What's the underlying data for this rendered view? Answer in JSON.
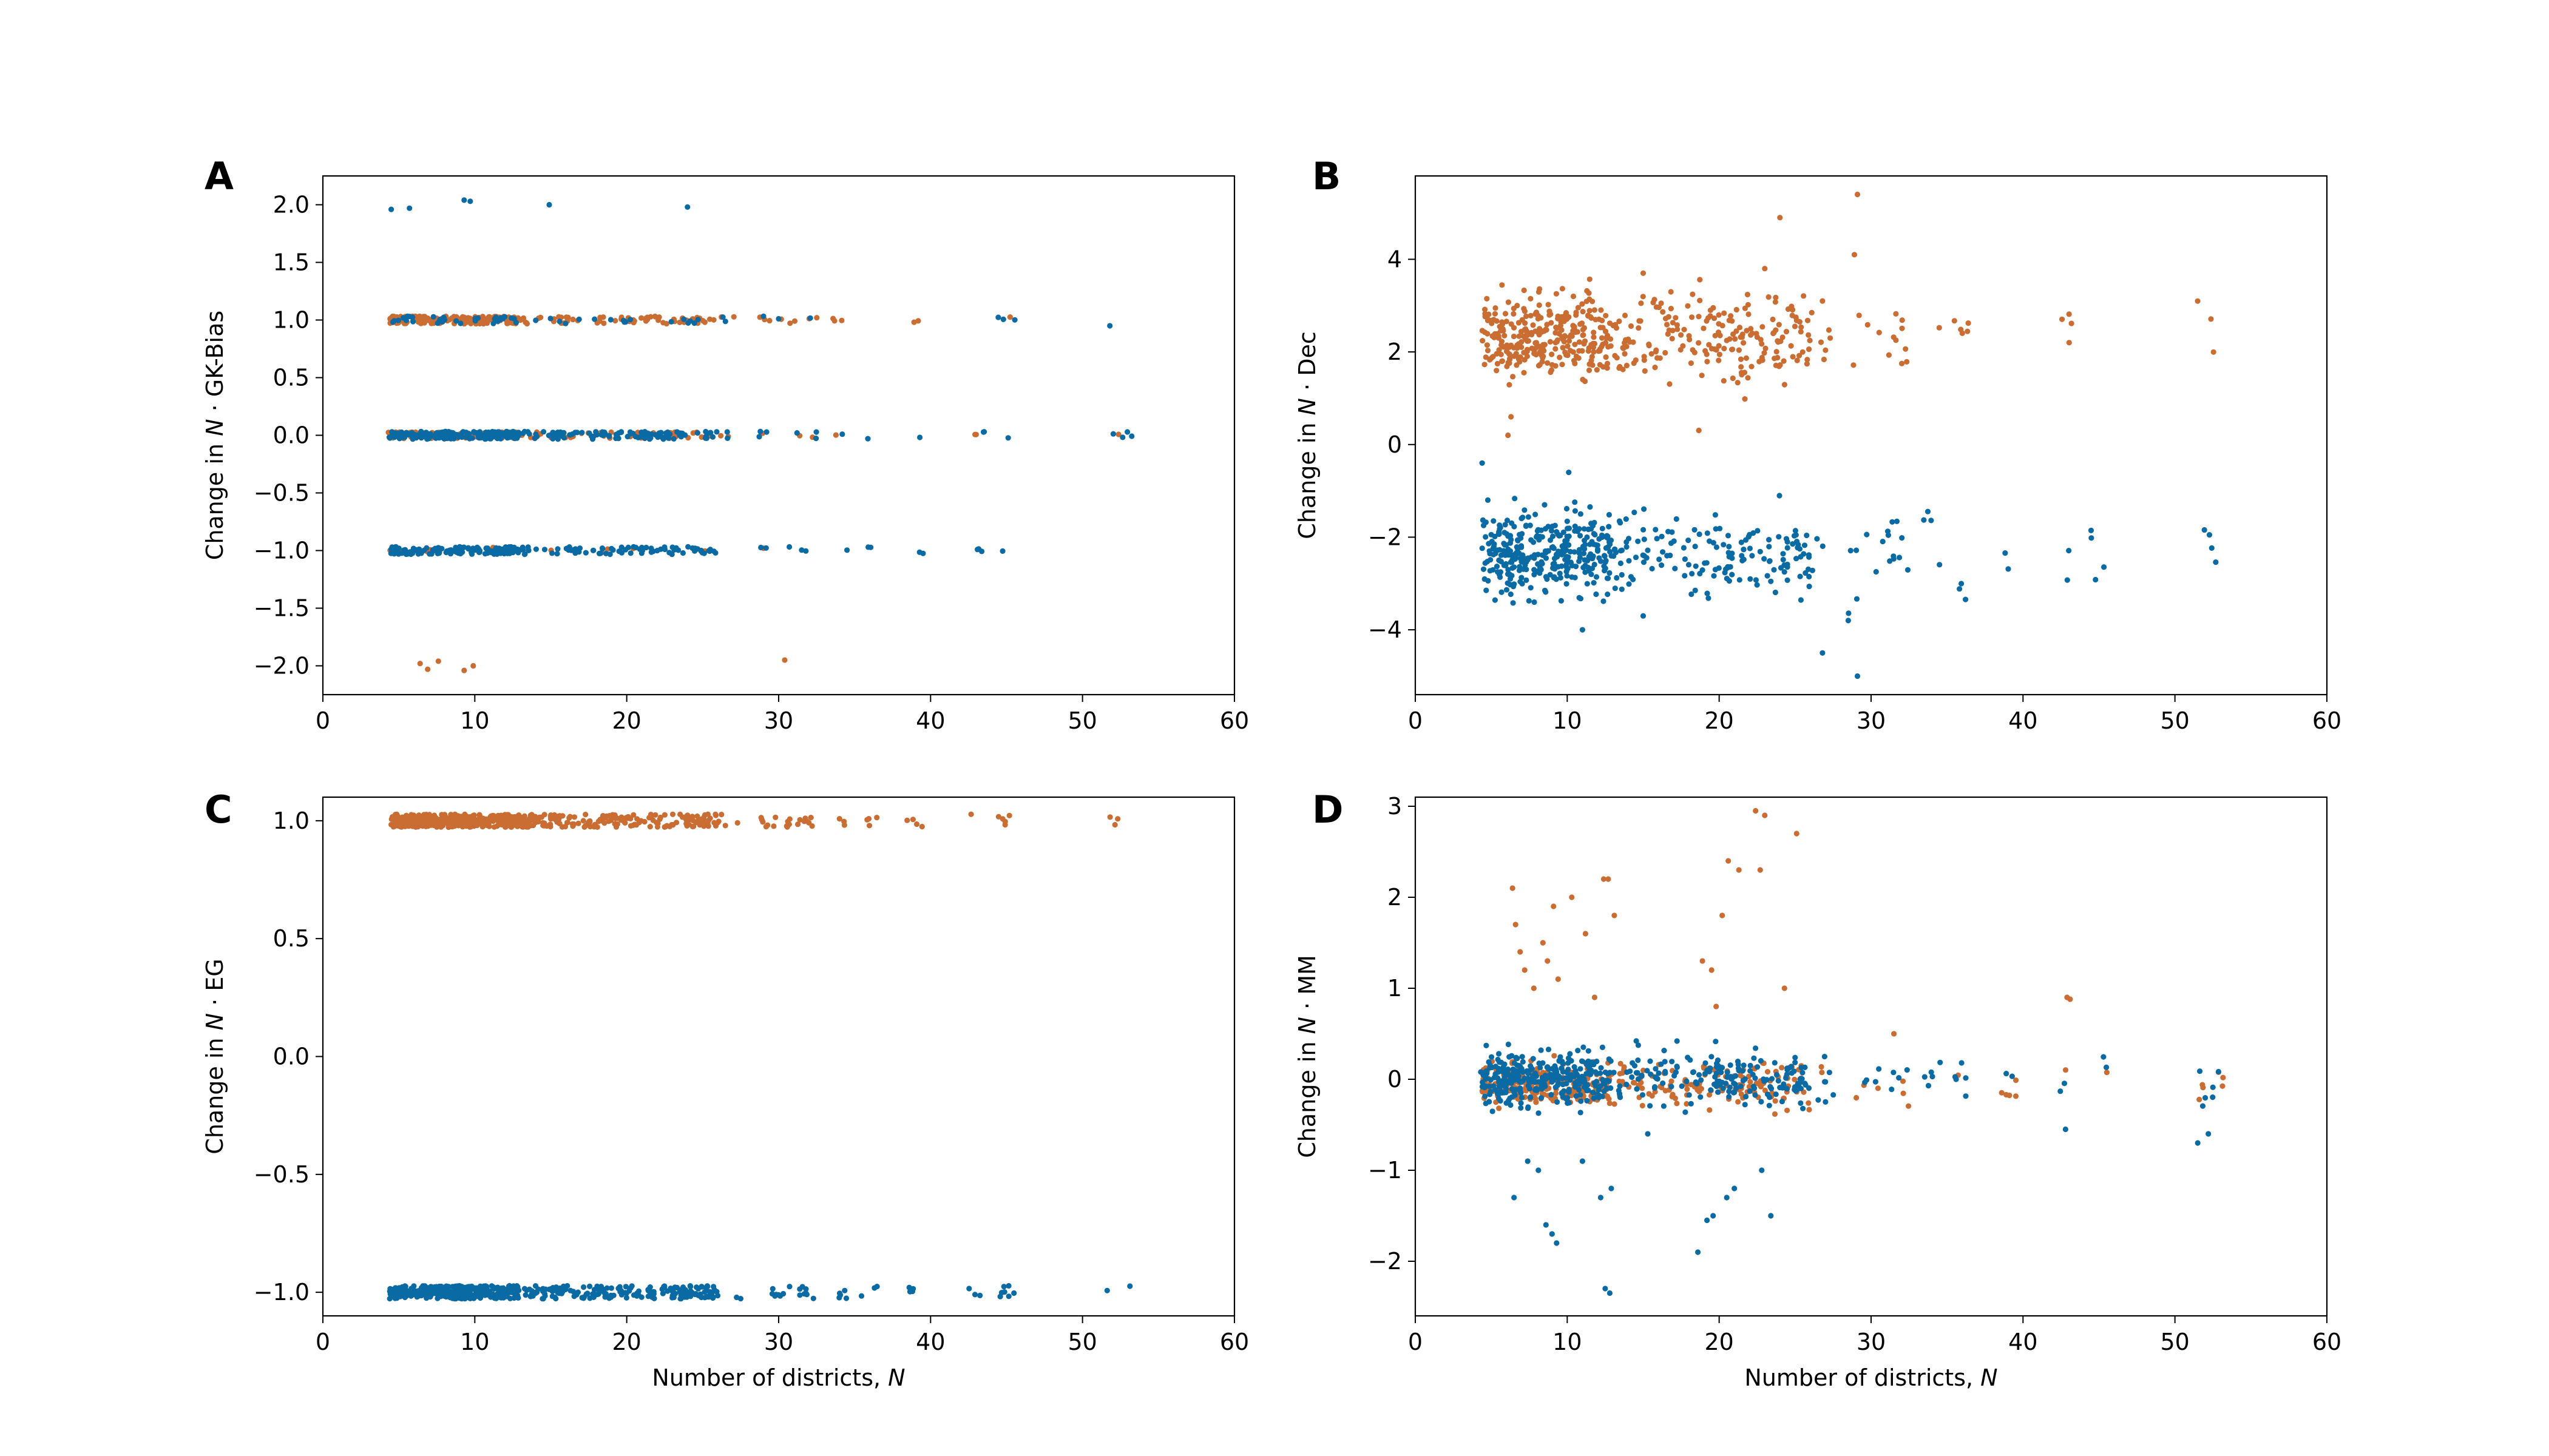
{
  "figure": {
    "colors": {
      "series_a": "#0a6aa3",
      "series_b": "#c96d33"
    }
  },
  "chart_data": [
    {
      "panel": "A",
      "type": "scatter",
      "xlabel_prefix": "",
      "xlabel_var": "",
      "ylabel_prefix": "Change in ",
      "ylabel_var": "N",
      "ylabel_suffix": " · GK-Bias",
      "xlim": [
        0,
        60
      ],
      "ylim": [
        -2.25,
        2.25
      ],
      "xticks": [
        "0",
        "10",
        "20",
        "30",
        "40",
        "50",
        "60"
      ],
      "xtick_values": [
        0,
        10,
        20,
        30,
        40,
        50,
        60
      ],
      "yticks": [
        "−2.0",
        "−1.5",
        "−1.0",
        "−0.5",
        "0.0",
        "0.5",
        "1.0",
        "1.5",
        "2.0"
      ],
      "ytick_values": [
        -2,
        -1.5,
        -1,
        -0.5,
        0,
        0.5,
        1,
        1.5,
        2
      ],
      "band_params": {
        "series_b": [
          {
            "center": 1.0,
            "spread": 0.03,
            "xmax": 45,
            "count": 240
          },
          {
            "center": 0.0,
            "spread": 0.025,
            "xmax": 53,
            "count": 170
          },
          {
            "center": -1.0,
            "spread": 0.025,
            "xmax": 52,
            "count": 18
          }
        ],
        "series_a": [
          {
            "center": 1.0,
            "spread": 0.03,
            "xmax": 52,
            "count": 60
          },
          {
            "center": 0.0,
            "spread": 0.03,
            "xmax": 53,
            "count": 300
          },
          {
            "center": -1.0,
            "spread": 0.03,
            "xmax": 52,
            "count": 220
          }
        ]
      },
      "extra_points": {
        "series_a": [
          [
            4.5,
            1.96
          ],
          [
            5.7,
            1.97
          ],
          [
            9.3,
            2.04
          ],
          [
            9.7,
            2.03
          ],
          [
            14.9,
            2.0
          ],
          [
            24.0,
            1.98
          ],
          [
            51.8,
            0.95
          ]
        ],
        "series_b": [
          [
            6.4,
            -1.98
          ],
          [
            6.9,
            -2.03
          ],
          [
            7.6,
            -1.96
          ],
          [
            9.3,
            -2.04
          ],
          [
            9.9,
            -2.0
          ],
          [
            30.4,
            -1.95
          ],
          [
            29.0,
            -0.98
          ]
        ]
      }
    },
    {
      "panel": "B",
      "type": "scatter",
      "xlabel_prefix": "",
      "xlabel_var": "",
      "ylabel_prefix": "Change in ",
      "ylabel_var": "N",
      "ylabel_suffix": " · Dec",
      "xlim": [
        0,
        60
      ],
      "ylim": [
        -5.4,
        5.8
      ],
      "xticks": [
        "0",
        "10",
        "20",
        "30",
        "40",
        "50",
        "60"
      ],
      "xtick_values": [
        0,
        10,
        20,
        30,
        40,
        50,
        60
      ],
      "yticks": [
        "−4",
        "−2",
        "0",
        "2",
        "4"
      ],
      "ytick_values": [
        -4,
        -2,
        0,
        2,
        4
      ],
      "band_params": {
        "series_b": [
          {
            "center": 2.3,
            "spread": 0.45,
            "xmax": 53,
            "count": 520
          }
        ],
        "series_a": [
          {
            "center": -2.4,
            "spread": 0.45,
            "xmax": 53,
            "count": 520
          }
        ]
      },
      "extra_points": {
        "series_b": [
          [
            6.1,
            0.2
          ],
          [
            6.3,
            0.6
          ],
          [
            23.0,
            3.8
          ],
          [
            24.0,
            4.9
          ],
          [
            28.9,
            4.1
          ],
          [
            29.1,
            5.4
          ],
          [
            26.8,
            3.1
          ],
          [
            15.0,
            3.7
          ]
        ],
        "series_a": [
          [
            4.4,
            -0.4
          ],
          [
            10.1,
            -0.6
          ],
          [
            26.8,
            -4.5
          ],
          [
            29.1,
            -5.0
          ],
          [
            28.5,
            -3.8
          ],
          [
            11.0,
            -4.0
          ],
          [
            15.0,
            -3.7
          ]
        ]
      }
    },
    {
      "panel": "C",
      "type": "scatter",
      "xlabel_prefix": "Number of districts, ",
      "xlabel_var": "N",
      "ylabel_prefix": "Change in ",
      "ylabel_var": "N",
      "ylabel_suffix": " · EG",
      "xlim": [
        0,
        60
      ],
      "ylim": [
        -1.1,
        1.1
      ],
      "xticks": [
        "0",
        "10",
        "20",
        "30",
        "40",
        "50",
        "60"
      ],
      "xtick_values": [
        0,
        10,
        20,
        30,
        40,
        50,
        60
      ],
      "yticks": [
        "−1.0",
        "−0.5",
        "0.0",
        "0.5",
        "1.0"
      ],
      "ytick_values": [
        -1,
        -0.5,
        0,
        0.5,
        1
      ],
      "band_params": {
        "series_b": [
          {
            "center": 1.0,
            "spread": 0.025,
            "xmax": 53,
            "count": 600
          }
        ],
        "series_a": [
          {
            "center": -1.0,
            "spread": 0.025,
            "xmax": 53,
            "count": 560
          }
        ]
      },
      "extra_points": {
        "series_a": [],
        "series_b": []
      }
    },
    {
      "panel": "D",
      "type": "scatter",
      "xlabel_prefix": "Number of districts, ",
      "xlabel_var": "N",
      "ylabel_prefix": "Change in ",
      "ylabel_var": "N",
      "ylabel_suffix": " · MM",
      "xlim": [
        0,
        60
      ],
      "ylim": [
        -2.6,
        3.1
      ],
      "xticks": [
        "0",
        "10",
        "20",
        "30",
        "40",
        "50",
        "60"
      ],
      "xtick_values": [
        0,
        10,
        20,
        30,
        40,
        50,
        60
      ],
      "yticks": [
        "−2",
        "−1",
        "0",
        "1",
        "2",
        "3"
      ],
      "ytick_values": [
        -2,
        -1,
        0,
        1,
        2,
        3
      ],
      "band_params": {
        "series_b": [
          {
            "center": -0.05,
            "spread": 0.12,
            "xmax": 53,
            "count": 380
          }
        ],
        "series_a": [
          {
            "center": 0.0,
            "spread": 0.15,
            "xmax": 53,
            "count": 520
          }
        ]
      },
      "extra_points": {
        "series_b": [
          [
            6.4,
            2.1
          ],
          [
            6.6,
            1.7
          ],
          [
            6.9,
            1.4
          ],
          [
            7.2,
            1.2
          ],
          [
            7.8,
            1.0
          ],
          [
            8.4,
            1.5
          ],
          [
            8.7,
            1.3
          ],
          [
            9.1,
            1.9
          ],
          [
            9.4,
            1.1
          ],
          [
            10.3,
            2.0
          ],
          [
            11.2,
            1.6
          ],
          [
            12.4,
            2.2
          ],
          [
            12.7,
            2.2
          ],
          [
            13.1,
            1.8
          ],
          [
            11.8,
            0.9
          ],
          [
            18.9,
            1.3
          ],
          [
            19.5,
            1.2
          ],
          [
            20.2,
            1.8
          ],
          [
            20.6,
            2.4
          ],
          [
            21.3,
            2.3
          ],
          [
            22.4,
            2.95
          ],
          [
            23.0,
            2.9
          ],
          [
            22.7,
            2.3
          ],
          [
            25.1,
            2.7
          ],
          [
            24.3,
            1.0
          ],
          [
            19.8,
            0.8
          ],
          [
            31.5,
            0.5
          ],
          [
            42.9,
            0.9
          ],
          [
            43.1,
            0.88
          ]
        ],
        "series_a": [
          [
            6.5,
            -1.3
          ],
          [
            7.4,
            -0.9
          ],
          [
            8.1,
            -1.0
          ],
          [
            8.6,
            -1.6
          ],
          [
            9.0,
            -1.7
          ],
          [
            9.3,
            -1.8
          ],
          [
            12.5,
            -2.3
          ],
          [
            12.8,
            -2.35
          ],
          [
            12.2,
            -1.3
          ],
          [
            12.9,
            -1.2
          ],
          [
            18.6,
            -1.9
          ],
          [
            19.2,
            -1.55
          ],
          [
            19.6,
            -1.5
          ],
          [
            20.5,
            -1.3
          ],
          [
            21.0,
            -1.2
          ],
          [
            22.8,
            -1.0
          ],
          [
            23.4,
            -1.5
          ],
          [
            42.8,
            -0.55
          ],
          [
            51.5,
            -0.7
          ],
          [
            52.2,
            -0.6
          ],
          [
            11.0,
            -0.9
          ],
          [
            15.3,
            -0.6
          ]
        ]
      }
    }
  ]
}
